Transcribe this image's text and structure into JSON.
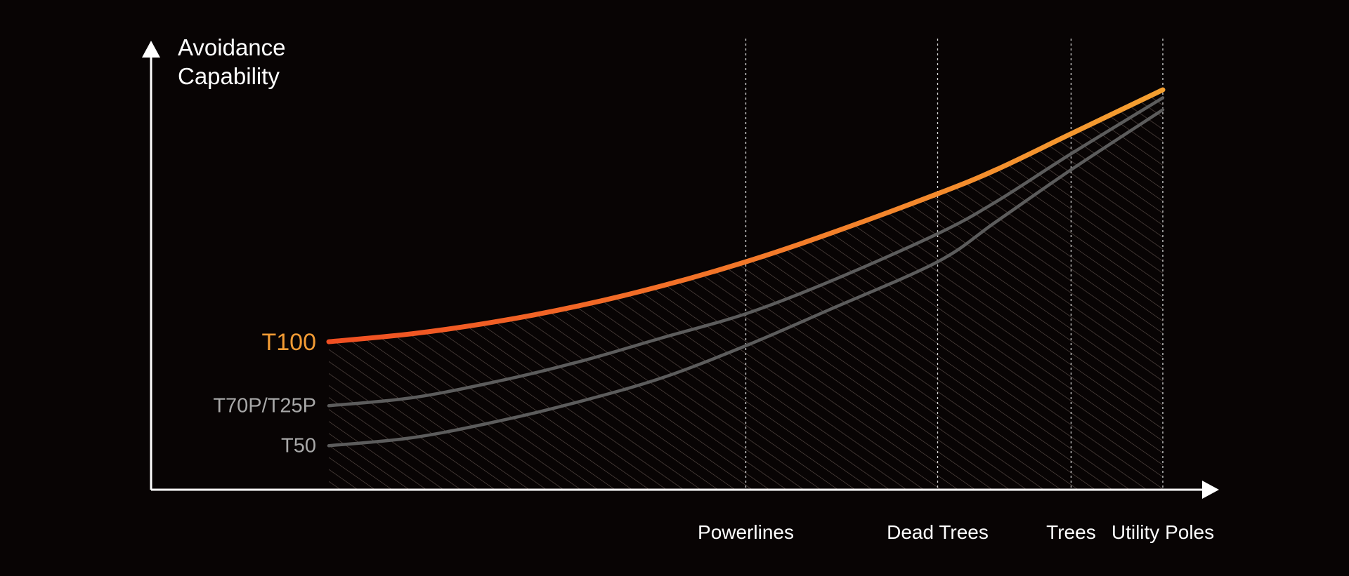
{
  "colors": {
    "background": "#080404",
    "axis": "#ffffff",
    "guide": "#d8d8d8",
    "hatch": "#5a4d47",
    "series_primary_start": "#f04f22",
    "series_primary_end": "#f5a030",
    "series_secondary": "#5c5c5c",
    "label_primary": "#f29b34",
    "label_secondary": "#a8a8a8",
    "text": "#ffffff"
  },
  "chart_data": {
    "type": "line",
    "title": "",
    "ylabel_lines": [
      "Avoidance",
      "Capability"
    ],
    "xlabel": "",
    "grid": false,
    "legend": "none",
    "x_ticks": [
      {
        "label": "Powerlines",
        "x": 0.5
      },
      {
        "label": "Dead  Trees",
        "x": 0.73
      },
      {
        "label": "Trees",
        "x": 0.89
      },
      {
        "label": "Utility Poles",
        "x": 1.0
      }
    ],
    "xlim": [
      0,
      1.1
    ],
    "ylim": [
      0,
      1
    ],
    "shaded_region_under": "T100",
    "series": [
      {
        "name": "T100",
        "highlight": true,
        "x": [
          0,
          0.1,
          0.2,
          0.3,
          0.4,
          0.5,
          0.6,
          0.73,
          0.8,
          0.89,
          1.0
        ],
        "y": [
          0.37,
          0.39,
          0.42,
          0.46,
          0.51,
          0.57,
          0.64,
          0.74,
          0.8,
          0.89,
          1.0
        ]
      },
      {
        "name": "T70P/T25P",
        "highlight": false,
        "x": [
          0,
          0.1,
          0.2,
          0.3,
          0.4,
          0.5,
          0.6,
          0.73,
          0.8,
          0.89,
          1.0
        ],
        "y": [
          0.21,
          0.23,
          0.27,
          0.32,
          0.38,
          0.44,
          0.52,
          0.64,
          0.72,
          0.84,
          0.98
        ]
      },
      {
        "name": "T50",
        "highlight": false,
        "x": [
          0,
          0.1,
          0.2,
          0.3,
          0.4,
          0.5,
          0.6,
          0.73,
          0.8,
          0.89,
          1.0
        ],
        "y": [
          0.11,
          0.13,
          0.17,
          0.22,
          0.28,
          0.36,
          0.45,
          0.57,
          0.67,
          0.8,
          0.95
        ]
      }
    ]
  }
}
